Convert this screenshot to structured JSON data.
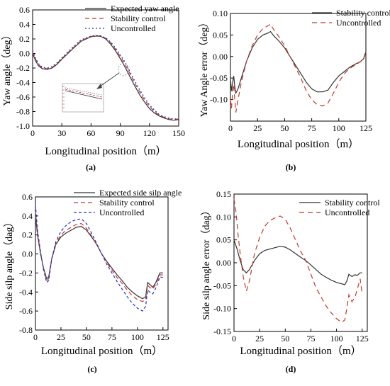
{
  "chart_data": [
    {
      "panel": "a",
      "caption": "(a)",
      "type": "line",
      "xlabel": "Longitudinal position（m）",
      "ylabel": "Yaw angle（deg）",
      "xlim": [
        0,
        150
      ],
      "ylim": [
        -1.0,
        0.6
      ],
      "xticks": [
        0,
        30,
        60,
        90,
        120,
        150
      ],
      "yticks": [
        -1.0,
        -0.8,
        -0.6,
        -0.4,
        -0.2,
        0.0,
        0.2,
        0.4,
        0.6
      ],
      "ytick_labels": [
        "-1.0",
        "-0.8",
        "-0.6",
        "-0.4",
        "-0.2",
        "0.0",
        "0.2",
        "0.4",
        "0.6"
      ],
      "legend_position": "top-right",
      "series": [
        {
          "name": "Expected yaw angle",
          "color": "#333333",
          "dash": "solid",
          "x": [
            0,
            3,
            6,
            10,
            15,
            20,
            25,
            30,
            40,
            50,
            60,
            65,
            70,
            75,
            80,
            85,
            90,
            95,
            100,
            105,
            110,
            115,
            120,
            125,
            130,
            135,
            140,
            145,
            150
          ],
          "y": [
            0.0,
            -0.1,
            -0.17,
            -0.21,
            -0.22,
            -0.2,
            -0.15,
            -0.08,
            0.05,
            0.17,
            0.23,
            0.24,
            0.235,
            0.2,
            0.13,
            0.04,
            -0.07,
            -0.19,
            -0.32,
            -0.45,
            -0.57,
            -0.67,
            -0.76,
            -0.82,
            -0.86,
            -0.89,
            -0.91,
            -0.92,
            -0.91
          ]
        },
        {
          "name": "Stability control",
          "color": "#c0392b",
          "dash": "6,4",
          "x": [
            0,
            3,
            6,
            10,
            15,
            20,
            25,
            30,
            40,
            50,
            60,
            65,
            70,
            75,
            80,
            85,
            90,
            95,
            100,
            105,
            110,
            115,
            120,
            125,
            130,
            135,
            140,
            145,
            150
          ],
          "y": [
            0.02,
            -0.08,
            -0.15,
            -0.2,
            -0.21,
            -0.19,
            -0.14,
            -0.07,
            0.06,
            0.18,
            0.235,
            0.245,
            0.24,
            0.21,
            0.15,
            0.06,
            -0.04,
            -0.15,
            -0.28,
            -0.41,
            -0.53,
            -0.64,
            -0.73,
            -0.8,
            -0.85,
            -0.88,
            -0.9,
            -0.91,
            -0.9
          ]
        },
        {
          "name": "Uncontrolled",
          "color": "#2233bb",
          "dash": "2,3",
          "x": [
            0,
            3,
            6,
            10,
            15,
            20,
            25,
            30,
            40,
            50,
            60,
            65,
            70,
            75,
            80,
            85,
            90,
            95,
            100,
            105,
            110,
            115,
            120,
            125,
            130,
            135,
            140,
            145,
            150
          ],
          "y": [
            0.04,
            -0.06,
            -0.14,
            -0.19,
            -0.2,
            -0.18,
            -0.13,
            -0.06,
            0.07,
            0.19,
            0.24,
            0.25,
            0.245,
            0.215,
            0.16,
            0.08,
            -0.02,
            -0.12,
            -0.25,
            -0.38,
            -0.5,
            -0.61,
            -0.71,
            -0.78,
            -0.84,
            -0.87,
            -0.89,
            -0.9,
            -0.9
          ]
        }
      ]
    },
    {
      "panel": "b",
      "caption": "(b)",
      "type": "line",
      "xlabel": "Longitudinal position（m）",
      "ylabel": "Yaw Angle error（deg）",
      "xlim": [
        0,
        125
      ],
      "ylim": [
        -0.15,
        0.1
      ],
      "xticks": [
        0,
        25,
        50,
        75,
        100,
        125
      ],
      "yticks": [
        -0.15,
        -0.1,
        -0.05,
        0.0,
        0.05,
        0.1
      ],
      "ytick_labels": [
        "",
        "-0.10",
        "-0.05",
        "0.00",
        "0.05",
        "0.10"
      ],
      "legend_position": "top-right",
      "series": [
        {
          "name": "Stability control",
          "color": "#333333",
          "dash": "solid",
          "x": [
            0,
            1,
            2,
            3,
            4,
            5,
            7,
            10,
            15,
            20,
            25,
            30,
            35,
            37,
            40,
            45,
            50,
            55,
            60,
            65,
            70,
            75,
            80,
            85,
            90,
            95,
            100,
            105,
            110,
            115,
            120,
            123,
            125
          ],
          "y": [
            -0.05,
            -0.08,
            -0.06,
            -0.045,
            -0.07,
            -0.085,
            -0.075,
            -0.05,
            -0.01,
            0.02,
            0.04,
            0.05,
            0.055,
            0.058,
            0.048,
            0.035,
            0.02,
            0.0,
            -0.02,
            -0.04,
            -0.06,
            -0.075,
            -0.082,
            -0.082,
            -0.078,
            -0.06,
            -0.045,
            -0.035,
            -0.025,
            -0.018,
            -0.012,
            -0.005,
            0.01
          ]
        },
        {
          "name": "Uncontrolled",
          "color": "#c0392b",
          "dash": "7,5",
          "x": [
            0,
            1,
            2,
            3,
            4,
            5,
            7,
            10,
            15,
            20,
            25,
            30,
            35,
            37,
            40,
            45,
            50,
            55,
            60,
            65,
            70,
            75,
            80,
            85,
            90,
            95,
            100,
            105,
            110,
            115,
            120,
            123,
            125
          ],
          "y": [
            -0.1,
            -0.12,
            -0.08,
            -0.065,
            -0.1,
            -0.13,
            -0.1,
            -0.06,
            -0.01,
            0.025,
            0.05,
            0.065,
            0.072,
            0.075,
            0.062,
            0.045,
            0.025,
            0.0,
            -0.025,
            -0.05,
            -0.08,
            -0.1,
            -0.112,
            -0.115,
            -0.108,
            -0.085,
            -0.06,
            -0.04,
            -0.028,
            -0.02,
            -0.012,
            -0.003,
            0.012
          ]
        }
      ]
    },
    {
      "panel": "c",
      "caption": "(c)",
      "type": "line",
      "xlabel": "Longitudinal position（m）",
      "ylabel": "Side silp angle（dag）",
      "xlim": [
        0,
        130
      ],
      "ylim": [
        -0.8,
        0.6
      ],
      "xticks": [
        0,
        25,
        50,
        75,
        100,
        125
      ],
      "yticks": [
        -0.8,
        -0.6,
        -0.4,
        -0.2,
        0.0,
        0.2,
        0.4,
        0.6
      ],
      "ytick_labels": [
        "-0.8",
        "-0.6",
        "-0.4",
        "-0.2",
        "0.0",
        "0.2",
        "0.4",
        "0.6"
      ],
      "legend_position": "top-right",
      "series": [
        {
          "name": "Expected side silp angle",
          "color": "#333333",
          "dash": "solid",
          "x": [
            0,
            2,
            5,
            8,
            11,
            13,
            16,
            20,
            25,
            30,
            35,
            40,
            45,
            50,
            55,
            60,
            65,
            70,
            75,
            80,
            85,
            90,
            95,
            100,
            105,
            108,
            110,
            112,
            115,
            118,
            120,
            122,
            125
          ],
          "y": [
            0.4,
            0.2,
            0.0,
            -0.15,
            -0.26,
            -0.24,
            -0.05,
            0.1,
            0.18,
            0.22,
            0.25,
            0.28,
            0.29,
            0.25,
            0.18,
            0.1,
            0.0,
            -0.08,
            -0.15,
            -0.22,
            -0.28,
            -0.35,
            -0.4,
            -0.44,
            -0.47,
            -0.45,
            -0.3,
            -0.32,
            -0.35,
            -0.3,
            -0.25,
            -0.2,
            -0.2
          ]
        },
        {
          "name": "Stability control",
          "color": "#c0392b",
          "dash": "6,4",
          "x": [
            0,
            2,
            5,
            8,
            11,
            13,
            16,
            20,
            25,
            30,
            35,
            40,
            45,
            50,
            55,
            60,
            65,
            70,
            75,
            80,
            85,
            90,
            95,
            100,
            105,
            108,
            110,
            112,
            115,
            118,
            120,
            122,
            125
          ],
          "y": [
            0.45,
            0.22,
            0.01,
            -0.16,
            -0.28,
            -0.26,
            -0.05,
            0.11,
            0.2,
            0.25,
            0.28,
            0.31,
            0.32,
            0.27,
            0.19,
            0.1,
            0.0,
            -0.09,
            -0.17,
            -0.25,
            -0.31,
            -0.38,
            -0.44,
            -0.48,
            -0.5,
            -0.48,
            -0.33,
            -0.35,
            -0.37,
            -0.32,
            -0.27,
            -0.22,
            -0.22
          ]
        },
        {
          "name": "Uncontrolled",
          "color": "#2233bb",
          "dash": "4,3",
          "x": [
            0,
            2,
            5,
            8,
            11,
            13,
            16,
            20,
            25,
            30,
            35,
            40,
            45,
            50,
            55,
            60,
            65,
            70,
            75,
            80,
            85,
            90,
            95,
            100,
            105,
            108,
            110,
            112,
            115,
            118,
            120,
            122,
            125
          ],
          "y": [
            0.52,
            0.25,
            0.02,
            -0.17,
            -0.3,
            -0.28,
            -0.05,
            0.13,
            0.24,
            0.3,
            0.34,
            0.36,
            0.37,
            0.32,
            0.22,
            0.11,
            0.0,
            -0.11,
            -0.2,
            -0.29,
            -0.37,
            -0.45,
            -0.52,
            -0.57,
            -0.6,
            -0.55,
            -0.38,
            -0.4,
            -0.42,
            -0.36,
            -0.3,
            -0.24,
            -0.25
          ]
        }
      ]
    },
    {
      "panel": "d",
      "caption": "(d)",
      "type": "line",
      "xlabel": "Longitudinal position（m）",
      "ylabel": "Side silp angle  error（dag）",
      "xlim": [
        0,
        130
      ],
      "ylim": [
        -0.15,
        0.15
      ],
      "xticks": [
        0,
        25,
        50,
        75,
        100,
        125
      ],
      "yticks": [
        -0.15,
        -0.1,
        -0.05,
        0.0,
        0.05,
        0.1,
        0.15
      ],
      "ytick_labels": [
        "-0.15",
        "-0.10",
        "-0.05",
        "0.00",
        "0.05",
        "0.10",
        "0.15"
      ],
      "legend_position": "top-right",
      "series": [
        {
          "name": "Stability control",
          "color": "#333333",
          "dash": "solid",
          "x": [
            0,
            3,
            6,
            9,
            12,
            15,
            20,
            25,
            30,
            35,
            40,
            45,
            50,
            55,
            60,
            65,
            70,
            75,
            80,
            85,
            90,
            95,
            100,
            105,
            108,
            110,
            112,
            115,
            118,
            120,
            123,
            125
          ],
          "y": [
            0.05,
            0.03,
            0.005,
            -0.015,
            -0.022,
            -0.015,
            0.005,
            0.02,
            0.027,
            0.03,
            0.033,
            0.036,
            0.034,
            0.028,
            0.02,
            0.012,
            0.005,
            -0.005,
            -0.015,
            -0.025,
            -0.032,
            -0.038,
            -0.043,
            -0.046,
            -0.048,
            -0.04,
            -0.025,
            -0.03,
            -0.026,
            -0.028,
            -0.022,
            -0.022
          ]
        },
        {
          "name": "Uncontrolled",
          "color": "#c0392b",
          "dash": "7,5",
          "x": [
            0,
            2,
            4,
            6,
            9,
            12,
            15,
            20,
            25,
            30,
            35,
            40,
            45,
            50,
            55,
            60,
            65,
            70,
            75,
            80,
            85,
            90,
            95,
            100,
            105,
            108,
            110,
            112,
            115,
            118,
            120,
            123,
            125
          ],
          "y": [
            0.14,
            0.11,
            0.06,
            0.02,
            -0.03,
            -0.062,
            -0.04,
            0.02,
            0.055,
            0.08,
            0.092,
            0.098,
            0.102,
            0.095,
            0.075,
            0.05,
            0.025,
            0.005,
            -0.025,
            -0.055,
            -0.075,
            -0.095,
            -0.11,
            -0.122,
            -0.13,
            -0.125,
            -0.1,
            -0.07,
            -0.085,
            -0.075,
            -0.06,
            -0.035,
            -0.07
          ]
        }
      ]
    }
  ]
}
